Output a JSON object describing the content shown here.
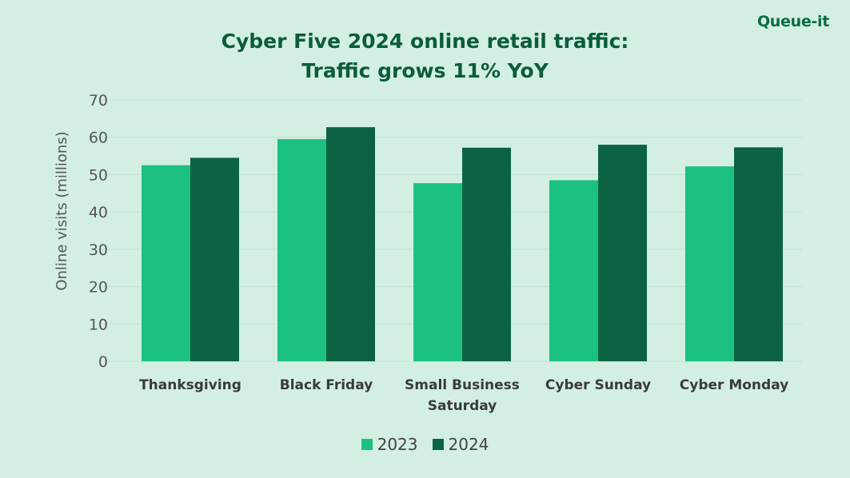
{
  "brand": {
    "logo_text": "Queue-it"
  },
  "chart_data": {
    "type": "bar",
    "title_lines": [
      "Cyber Five 2024 online retail traffic:",
      "Traffic grows 11% YoY"
    ],
    "ylabel": "Online visits (millions)",
    "xlabel": "",
    "ylim": [
      0,
      70
    ],
    "yticks": [
      "0",
      "10",
      "20",
      "30",
      "40",
      "50",
      "60",
      "70"
    ],
    "grid": true,
    "legend_position": "bottom-center",
    "categories": [
      [
        "Thanksgiving"
      ],
      [
        "Black Friday"
      ],
      [
        "Small Business",
        "Saturday"
      ],
      [
        "Cyber Sunday"
      ],
      [
        "Cyber Monday"
      ]
    ],
    "series": [
      {
        "name": "2023",
        "color": "#1cc07f",
        "values": [
          52.5,
          59.5,
          47.7,
          48.5,
          52.2
        ]
      },
      {
        "name": "2024",
        "color": "#0b6343",
        "values": [
          54.5,
          62.7,
          57.2,
          58.0,
          57.3
        ]
      }
    ]
  }
}
